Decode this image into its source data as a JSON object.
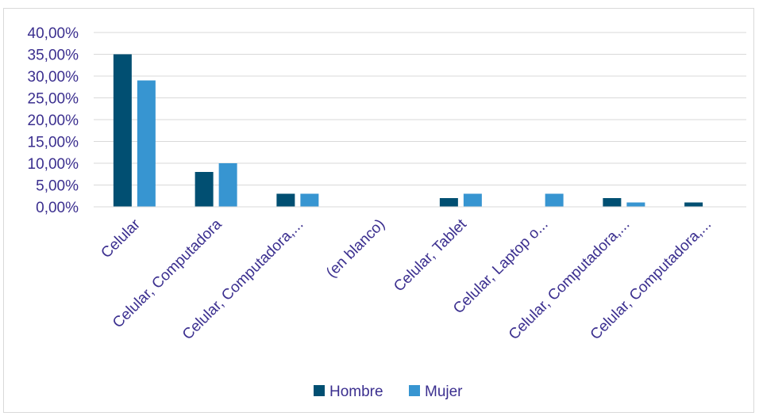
{
  "chart_data": {
    "type": "bar",
    "categories": [
      "Celular",
      "Celular, Computadora",
      "Celular, Computadora,...",
      "(en blanco)",
      "Celular, Tablet",
      "Celular, Laptop o...",
      "Celular, Computadora,...",
      "Celular, Computadora,..."
    ],
    "series": [
      {
        "name": "Hombre",
        "color": "#014f72",
        "values": [
          35,
          8,
          3,
          0,
          2,
          0,
          2,
          1
        ]
      },
      {
        "name": "Mujer",
        "color": "#3795d1",
        "values": [
          29,
          10,
          3,
          0,
          3,
          3,
          1,
          0
        ]
      }
    ],
    "yticks": [
      "0,00%",
      "5,00%",
      "10,00%",
      "15,00%",
      "20,00%",
      "25,00%",
      "30,00%",
      "35,00%",
      "40,00%"
    ],
    "ylim": [
      0,
      40
    ],
    "grid": true,
    "legend": "bottom",
    "title": "",
    "xlabel": "",
    "ylabel": ""
  }
}
